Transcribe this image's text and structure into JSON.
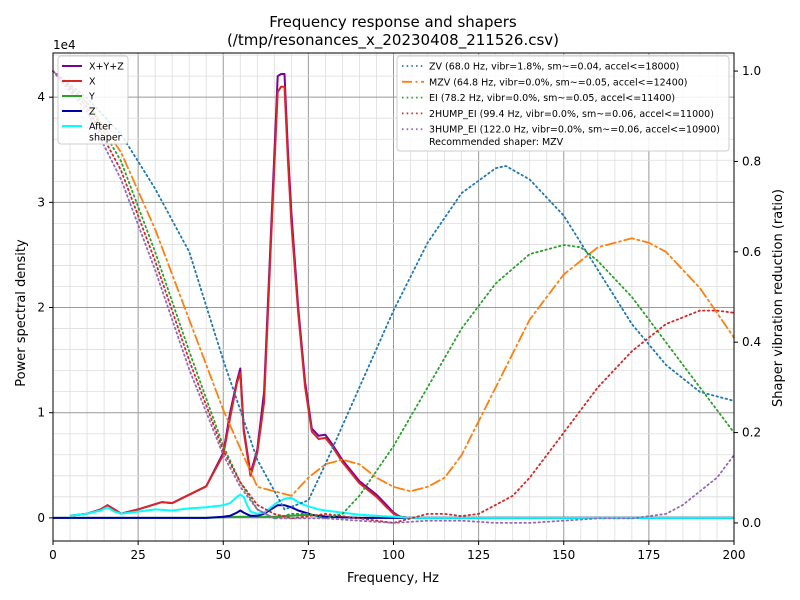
{
  "chart_data": {
    "type": "line",
    "title": "Frequency response and shapers",
    "subtitle": "(/tmp/resonances_x_20230408_211526.csv)",
    "xlabel": "Frequency, Hz",
    "ylabel": "Power spectral density",
    "y2label": "Shaper vibration reduction (ratio)",
    "y_offset_label": "1e4",
    "xlim": [
      0,
      200
    ],
    "ylim": [
      -0.22,
      4.42
    ],
    "y2lim": [
      -0.04,
      1.04
    ],
    "xticks": [
      0,
      25,
      50,
      75,
      100,
      125,
      150,
      175,
      200
    ],
    "yticks": [
      0,
      1,
      2,
      3,
      4
    ],
    "y2ticks": [
      0.0,
      0.2,
      0.4,
      0.6,
      0.8,
      1.0
    ],
    "psd_legend_placement": "top-left",
    "shaper_legend_placement": "top-right",
    "recommended_text": "Recommended shaper: MZV",
    "psd_series": [
      {
        "name": "X+Y+Z",
        "color": "#7b0099",
        "width": 2,
        "x": [
          5,
          10,
          14,
          16,
          18,
          20,
          25,
          30,
          32,
          35,
          40,
          45,
          50,
          52,
          54,
          55,
          56,
          58,
          60,
          62,
          64,
          66,
          67,
          68,
          69,
          70,
          72,
          74,
          76,
          78,
          80,
          82,
          85,
          90,
          95,
          98,
          100,
          102,
          105,
          110,
          150,
          200
        ],
        "y": [
          0.02,
          0.04,
          0.08,
          0.12,
          0.08,
          0.04,
          0.08,
          0.13,
          0.15,
          0.14,
          0.22,
          0.3,
          0.62,
          1.0,
          1.3,
          1.42,
          0.85,
          0.42,
          0.65,
          1.2,
          2.7,
          4.2,
          4.22,
          4.22,
          3.5,
          2.9,
          2.0,
          1.3,
          0.85,
          0.78,
          0.79,
          0.7,
          0.55,
          0.35,
          0.22,
          0.12,
          0.05,
          0.01,
          0.0,
          0.0,
          0.0,
          0.0
        ]
      },
      {
        "name": "X",
        "color": "#d62728",
        "width": 2,
        "x": [
          5,
          10,
          14,
          16,
          18,
          20,
          25,
          30,
          32,
          35,
          40,
          45,
          50,
          52,
          54,
          55,
          56,
          58,
          60,
          62,
          64,
          66,
          67,
          68,
          69,
          70,
          72,
          74,
          76,
          78,
          80,
          82,
          85,
          90,
          95,
          98,
          100,
          102,
          105,
          110,
          150,
          200
        ],
        "y": [
          0.02,
          0.04,
          0.08,
          0.12,
          0.08,
          0.04,
          0.08,
          0.13,
          0.15,
          0.14,
          0.22,
          0.3,
          0.6,
          0.95,
          1.28,
          1.38,
          0.82,
          0.4,
          0.62,
          1.1,
          2.6,
          4.05,
          4.1,
          4.1,
          3.4,
          2.8,
          1.95,
          1.25,
          0.82,
          0.75,
          0.76,
          0.68,
          0.53,
          0.33,
          0.2,
          0.1,
          0.04,
          0.01,
          0.0,
          0.0,
          0.0,
          0.0
        ]
      },
      {
        "name": "Y",
        "color": "#2ca02c",
        "width": 2,
        "x": [
          0,
          45,
          50,
          55,
          60,
          65,
          70,
          75,
          80,
          85,
          90,
          100,
          200
        ],
        "y": [
          0,
          0,
          0.005,
          0.01,
          0.01,
          0.01,
          0.02,
          0.03,
          0.015,
          0.005,
          0.0,
          0.0,
          0.0
        ]
      },
      {
        "name": "Z",
        "color": "#0000aa",
        "width": 2,
        "x": [
          0,
          45,
          50,
          52,
          54,
          55,
          56,
          58,
          60,
          62,
          64,
          66,
          68,
          70,
          72,
          74,
          76,
          78,
          80,
          85,
          90,
          100,
          200
        ],
        "y": [
          0,
          0,
          0.01,
          0.02,
          0.05,
          0.07,
          0.05,
          0.02,
          0.02,
          0.04,
          0.08,
          0.12,
          0.12,
          0.1,
          0.07,
          0.05,
          0.03,
          0.015,
          0.01,
          0.005,
          0.0,
          0.0,
          0.0
        ]
      },
      {
        "name": "After\nshaper",
        "color": "#00ffff",
        "width": 2,
        "x": [
          5,
          10,
          14,
          16,
          18,
          20,
          25,
          30,
          35,
          40,
          45,
          50,
          52,
          54,
          55,
          56,
          57,
          58,
          60,
          62,
          64,
          66,
          68,
          70,
          72,
          74,
          76,
          78,
          80,
          85,
          90,
          95,
          100,
          105,
          110,
          150,
          200
        ],
        "y": [
          0.02,
          0.04,
          0.07,
          0.1,
          0.06,
          0.04,
          0.06,
          0.08,
          0.07,
          0.09,
          0.1,
          0.12,
          0.14,
          0.2,
          0.22,
          0.2,
          0.12,
          0.06,
          0.04,
          0.05,
          0.1,
          0.15,
          0.18,
          0.19,
          0.15,
          0.12,
          0.1,
          0.08,
          0.07,
          0.05,
          0.03,
          0.02,
          0.01,
          0.0,
          0.0,
          0.0,
          0.0
        ]
      }
    ],
    "shaper_series": [
      {
        "name": "ZV (68.0 Hz, vibr=1.8%, sm~=0.04, accel<=18000)",
        "color": "#1f77b4",
        "dash": "dotted",
        "x": [
          0,
          10,
          20,
          30,
          40,
          50,
          60,
          68,
          75,
          80,
          90,
          100,
          110,
          120,
          130,
          133,
          140,
          150,
          160,
          170,
          180,
          190,
          200
        ],
        "y": [
          1.0,
          0.94,
          0.86,
          0.74,
          0.6,
          0.36,
          0.14,
          0.03,
          0.05,
          0.13,
          0.3,
          0.47,
          0.62,
          0.73,
          0.785,
          0.79,
          0.76,
          0.68,
          0.56,
          0.44,
          0.35,
          0.29,
          0.27
        ]
      },
      {
        "name": "MZV (64.8 Hz, vibr=0.0%, sm~=0.05, accel<=12400)",
        "color": "#ff7f0e",
        "dash": "dashdot",
        "x": [
          0,
          10,
          20,
          30,
          40,
          50,
          60,
          70,
          75,
          80,
          85,
          90,
          95,
          100,
          105,
          110,
          115,
          120,
          130,
          140,
          150,
          160,
          170,
          175,
          180,
          190,
          200
        ],
        "y": [
          1.0,
          0.93,
          0.82,
          0.65,
          0.45,
          0.25,
          0.08,
          0.06,
          0.1,
          0.13,
          0.14,
          0.13,
          0.1,
          0.08,
          0.07,
          0.08,
          0.1,
          0.15,
          0.3,
          0.45,
          0.55,
          0.61,
          0.63,
          0.62,
          0.6,
          0.52,
          0.41
        ]
      },
      {
        "name": "EI (78.2 Hz, vibr=0.0%, sm~=0.05, accel<=11400)",
        "color": "#2ca02c",
        "dash": "dotted",
        "x": [
          0,
          10,
          20,
          30,
          40,
          50,
          55,
          60,
          65,
          70,
          75,
          80,
          85,
          90,
          100,
          110,
          120,
          130,
          140,
          150,
          155,
          160,
          170,
          180,
          190,
          200
        ],
        "y": [
          1.0,
          0.93,
          0.8,
          0.6,
          0.38,
          0.17,
          0.09,
          0.03,
          0.01,
          0.02,
          0.02,
          0.01,
          0.02,
          0.06,
          0.17,
          0.3,
          0.43,
          0.53,
          0.595,
          0.615,
          0.61,
          0.58,
          0.5,
          0.4,
          0.3,
          0.2
        ]
      },
      {
        "name": "2HUMP_EI (99.4 Hz, vibr=0.0%, sm~=0.06, accel<=11000)",
        "color": "#d62728",
        "dash": "dotted",
        "x": [
          0,
          10,
          20,
          30,
          40,
          50,
          55,
          60,
          65,
          70,
          80,
          90,
          100,
          105,
          110,
          115,
          120,
          125,
          130,
          135,
          140,
          150,
          160,
          170,
          180,
          190,
          195,
          200
        ],
        "y": [
          1.0,
          0.92,
          0.78,
          0.58,
          0.36,
          0.16,
          0.09,
          0.04,
          0.02,
          0.01,
          0.02,
          0.01,
          0.0,
          0.01,
          0.02,
          0.02,
          0.015,
          0.02,
          0.04,
          0.06,
          0.1,
          0.2,
          0.3,
          0.38,
          0.44,
          0.47,
          0.47,
          0.465
        ]
      },
      {
        "name": "3HUMP_EI (122.0 Hz, vibr=0.0%, sm~=0.06, accel<=10900)",
        "color": "#9467bd",
        "dash": "dotted",
        "x": [
          0,
          10,
          20,
          30,
          40,
          50,
          55,
          60,
          65,
          70,
          80,
          90,
          100,
          110,
          120,
          130,
          140,
          150,
          160,
          170,
          180,
          185,
          190,
          195,
          200
        ],
        "y": [
          1.0,
          0.91,
          0.76,
          0.56,
          0.34,
          0.15,
          0.08,
          0.03,
          0.01,
          0.01,
          0.01,
          0.005,
          0.0,
          0.005,
          0.005,
          0.0,
          0.0,
          0.005,
          0.01,
          0.01,
          0.02,
          0.04,
          0.07,
          0.1,
          0.15
        ]
      }
    ]
  }
}
